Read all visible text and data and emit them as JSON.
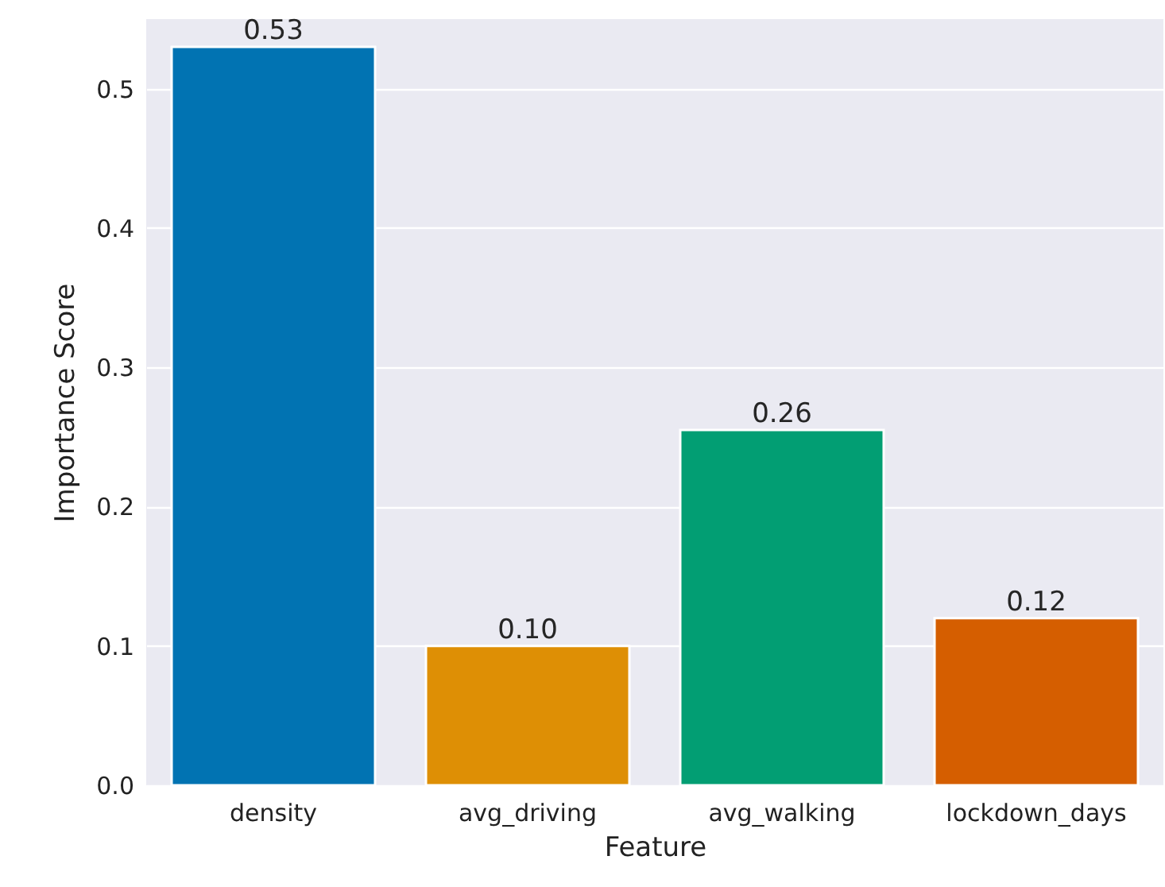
{
  "chart_data": {
    "type": "bar",
    "xlabel": "Feature",
    "ylabel": "Importance Score",
    "categories": [
      "density",
      "avg_driving",
      "avg_walking",
      "lockdown_days"
    ],
    "values": [
      0.53,
      0.1,
      0.255,
      0.12
    ],
    "value_labels": [
      "0.53",
      "0.10",
      "0.26",
      "0.12"
    ],
    "colors": [
      "#0173b2",
      "#de8f05",
      "#029e73",
      "#d55e00"
    ],
    "ylim": [
      0,
      0.55
    ],
    "yticks": [
      {
        "value": 0,
        "label": "0.0"
      },
      {
        "value": 0.1,
        "label": "0.1"
      },
      {
        "value": 0.2,
        "label": "0.2"
      },
      {
        "value": 0.3,
        "label": "0.3"
      },
      {
        "value": 0.4,
        "label": "0.4"
      },
      {
        "value": 0.5,
        "label": "0.5"
      }
    ],
    "grid": "y"
  }
}
